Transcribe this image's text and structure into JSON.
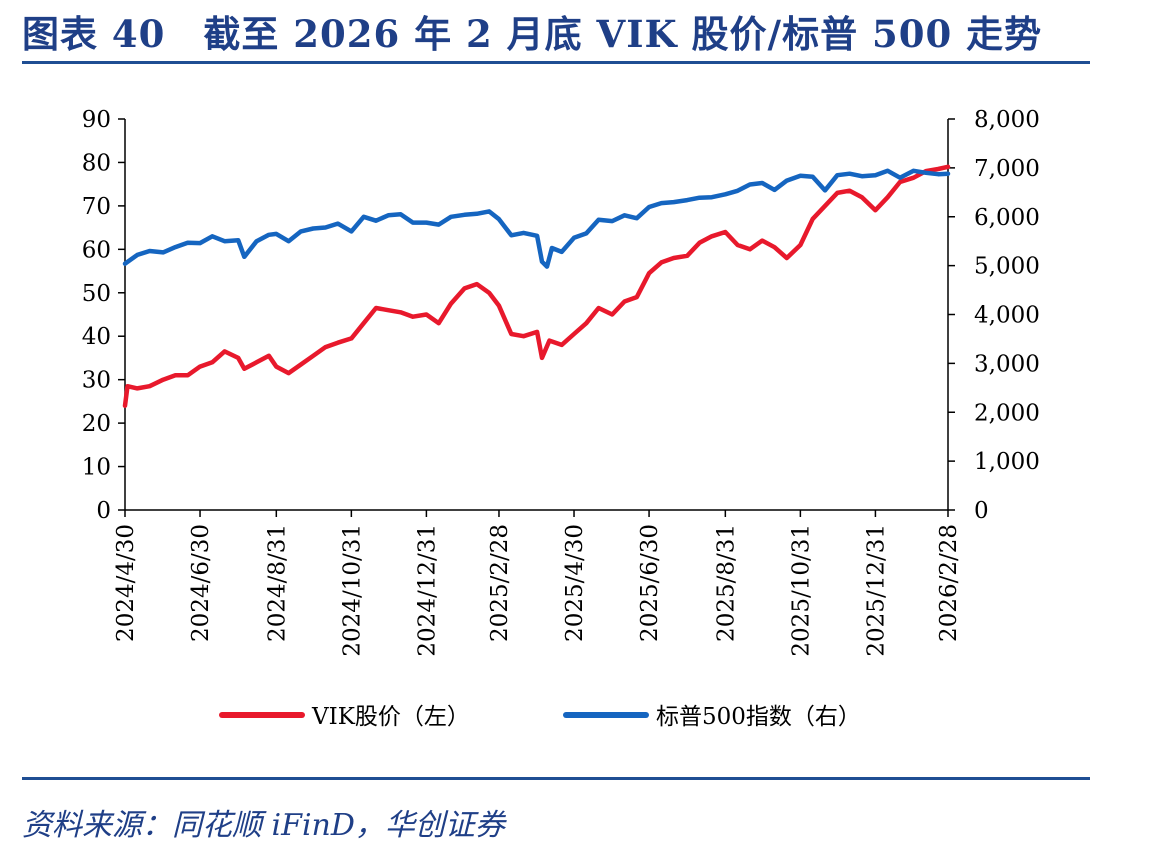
{
  "header": {
    "title": "图表 40　截至 2026 年 2 月底 VIK 股价/标普 500 走势"
  },
  "footer": {
    "source": "资料来源：同花顺 iFinD，华创证券"
  },
  "colors": {
    "vik": "#e8192c",
    "spx": "#1565c0",
    "header_text": "#1f3f87",
    "rule": "#1f4e93"
  },
  "chart_data": {
    "type": "line",
    "title": "",
    "xlabel": "",
    "ylabel_left": "",
    "ylabel_right": "",
    "x_ticks": [
      "2024/4/30",
      "2024/6/30",
      "2024/8/31",
      "2024/10/31",
      "2024/12/31",
      "2025/2/28",
      "2025/4/30",
      "2025/6/30",
      "2025/8/31",
      "2025/10/31",
      "2025/12/31",
      "2026/2/28"
    ],
    "xlim": [
      "2024-04-30",
      "2026-02-28"
    ],
    "y_left": {
      "ylim": [
        0,
        90
      ],
      "ticks": [
        "0",
        "10",
        "20",
        "30",
        "40",
        "50",
        "60",
        "70",
        "80",
        "90"
      ]
    },
    "y_right": {
      "ylim": [
        0,
        8000
      ],
      "ticks": [
        "0",
        "1,000",
        "2,000",
        "3,000",
        "4,000",
        "5,000",
        "6,000",
        "7,000",
        "8,000"
      ]
    },
    "legend": {
      "placement": "bottom-center"
    },
    "grid": false,
    "series": [
      {
        "name": "VIK股价（左）",
        "axis": "left",
        "points": [
          [
            "2024-04-30",
            24
          ],
          [
            "2024-05-02",
            28.5
          ],
          [
            "2024-05-10",
            28
          ],
          [
            "2024-05-20",
            28.5
          ],
          [
            "2024-05-31",
            30
          ],
          [
            "2024-06-10",
            31
          ],
          [
            "2024-06-20",
            31
          ],
          [
            "2024-06-30",
            33
          ],
          [
            "2024-07-10",
            34
          ],
          [
            "2024-07-20",
            36.5
          ],
          [
            "2024-07-31",
            35
          ],
          [
            "2024-08-05",
            32.5
          ],
          [
            "2024-08-15",
            34
          ],
          [
            "2024-08-25",
            35.5
          ],
          [
            "2024-08-31",
            33
          ],
          [
            "2024-09-10",
            31.5
          ],
          [
            "2024-09-20",
            33.5
          ],
          [
            "2024-09-30",
            35.5
          ],
          [
            "2024-10-10",
            37.5
          ],
          [
            "2024-10-20",
            38.5
          ],
          [
            "2024-10-31",
            39.5
          ],
          [
            "2024-11-10",
            43
          ],
          [
            "2024-11-20",
            46.5
          ],
          [
            "2024-11-30",
            46
          ],
          [
            "2024-12-10",
            45.5
          ],
          [
            "2024-12-20",
            44.5
          ],
          [
            "2024-12-31",
            45
          ],
          [
            "2025-01-10",
            43
          ],
          [
            "2025-01-20",
            47.5
          ],
          [
            "2025-01-31",
            51
          ],
          [
            "2025-02-10",
            52
          ],
          [
            "2025-02-20",
            50
          ],
          [
            "2025-02-28",
            47
          ],
          [
            "2025-03-10",
            40.5
          ],
          [
            "2025-03-20",
            40
          ],
          [
            "2025-03-31",
            41
          ],
          [
            "2025-04-04",
            35
          ],
          [
            "2025-04-10",
            39
          ],
          [
            "2025-04-20",
            38
          ],
          [
            "2025-04-30",
            40.5
          ],
          [
            "2025-05-10",
            43
          ],
          [
            "2025-05-20",
            46.5
          ],
          [
            "2025-05-31",
            45
          ],
          [
            "2025-06-10",
            48
          ],
          [
            "2025-06-20",
            49
          ],
          [
            "2025-06-30",
            54.5
          ],
          [
            "2025-07-10",
            57
          ],
          [
            "2025-07-20",
            58
          ],
          [
            "2025-07-31",
            58.5
          ],
          [
            "2025-08-10",
            61.5
          ],
          [
            "2025-08-20",
            63
          ],
          [
            "2025-08-31",
            64
          ],
          [
            "2025-09-10",
            61
          ],
          [
            "2025-09-20",
            60
          ],
          [
            "2025-09-30",
            62
          ],
          [
            "2025-10-10",
            60.5
          ],
          [
            "2025-10-20",
            58
          ],
          [
            "2025-10-31",
            61
          ],
          [
            "2025-11-10",
            67
          ],
          [
            "2025-11-20",
            70
          ],
          [
            "2025-11-30",
            73
          ],
          [
            "2025-12-10",
            73.5
          ],
          [
            "2025-12-20",
            72
          ],
          [
            "2025-12-31",
            69
          ],
          [
            "2026-01-10",
            72
          ],
          [
            "2026-01-20",
            75.5
          ],
          [
            "2026-01-31",
            76.5
          ],
          [
            "2026-02-10",
            78
          ],
          [
            "2026-02-20",
            78.5
          ],
          [
            "2026-02-28",
            79
          ]
        ]
      },
      {
        "name": "标普500指数（右）",
        "axis": "right",
        "points": [
          [
            "2024-04-30",
            5040
          ],
          [
            "2024-05-10",
            5220
          ],
          [
            "2024-05-20",
            5300
          ],
          [
            "2024-05-31",
            5270
          ],
          [
            "2024-06-10",
            5380
          ],
          [
            "2024-06-20",
            5470
          ],
          [
            "2024-06-30",
            5460
          ],
          [
            "2024-07-10",
            5600
          ],
          [
            "2024-07-20",
            5500
          ],
          [
            "2024-07-31",
            5520
          ],
          [
            "2024-08-05",
            5180
          ],
          [
            "2024-08-15",
            5500
          ],
          [
            "2024-08-25",
            5630
          ],
          [
            "2024-08-31",
            5650
          ],
          [
            "2024-09-10",
            5500
          ],
          [
            "2024-09-20",
            5700
          ],
          [
            "2024-09-30",
            5760
          ],
          [
            "2024-10-10",
            5780
          ],
          [
            "2024-10-20",
            5860
          ],
          [
            "2024-10-31",
            5700
          ],
          [
            "2024-11-10",
            6000
          ],
          [
            "2024-11-20",
            5920
          ],
          [
            "2024-11-30",
            6030
          ],
          [
            "2024-12-10",
            6050
          ],
          [
            "2024-12-20",
            5880
          ],
          [
            "2024-12-31",
            5880
          ],
          [
            "2025-01-10",
            5840
          ],
          [
            "2025-01-20",
            6000
          ],
          [
            "2025-01-31",
            6040
          ],
          [
            "2025-02-10",
            6060
          ],
          [
            "2025-02-20",
            6110
          ],
          [
            "2025-02-28",
            5950
          ],
          [
            "2025-03-10",
            5620
          ],
          [
            "2025-03-20",
            5670
          ],
          [
            "2025-03-31",
            5610
          ],
          [
            "2025-04-04",
            5080
          ],
          [
            "2025-04-08",
            4980
          ],
          [
            "2025-04-12",
            5360
          ],
          [
            "2025-04-20",
            5280
          ],
          [
            "2025-04-30",
            5570
          ],
          [
            "2025-05-10",
            5660
          ],
          [
            "2025-05-20",
            5940
          ],
          [
            "2025-05-31",
            5910
          ],
          [
            "2025-06-10",
            6030
          ],
          [
            "2025-06-20",
            5970
          ],
          [
            "2025-06-30",
            6200
          ],
          [
            "2025-07-10",
            6280
          ],
          [
            "2025-07-20",
            6300
          ],
          [
            "2025-07-31",
            6340
          ],
          [
            "2025-08-10",
            6390
          ],
          [
            "2025-08-20",
            6400
          ],
          [
            "2025-08-31",
            6460
          ],
          [
            "2025-09-10",
            6530
          ],
          [
            "2025-09-20",
            6660
          ],
          [
            "2025-09-30",
            6690
          ],
          [
            "2025-10-10",
            6550
          ],
          [
            "2025-10-20",
            6740
          ],
          [
            "2025-10-31",
            6840
          ],
          [
            "2025-11-10",
            6820
          ],
          [
            "2025-11-20",
            6540
          ],
          [
            "2025-11-30",
            6850
          ],
          [
            "2025-12-10",
            6880
          ],
          [
            "2025-12-20",
            6830
          ],
          [
            "2025-12-31",
            6850
          ],
          [
            "2026-01-10",
            6940
          ],
          [
            "2026-01-20",
            6800
          ],
          [
            "2026-01-31",
            6940
          ],
          [
            "2026-02-10",
            6900
          ],
          [
            "2026-02-20",
            6870
          ],
          [
            "2026-02-28",
            6880
          ]
        ]
      }
    ]
  }
}
